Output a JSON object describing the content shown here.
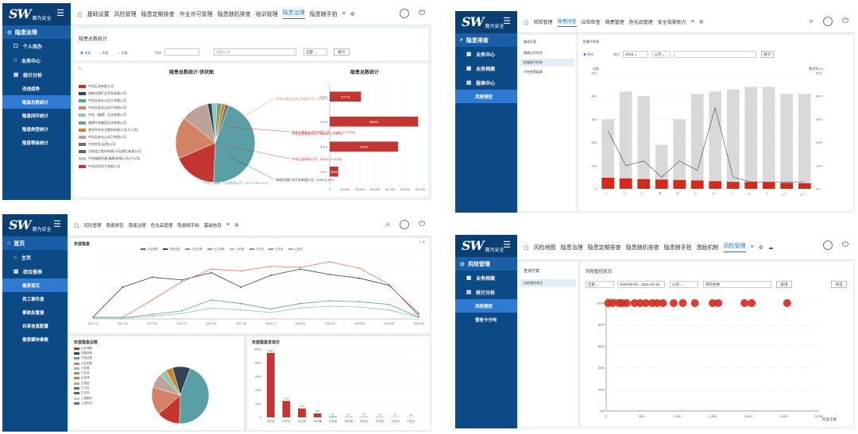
{
  "brand": {
    "logo": "SW",
    "sub": "赛为安全"
  },
  "p1": {
    "sidebar": {
      "section": "隐患治理",
      "items": [
        "个人待办",
        "业务中心",
        "统计分析"
      ],
      "subs": [
        "改进趋势",
        "隐患总数统计",
        "隐患闭环统计",
        "隐患类型统计",
        "隐患等级统计"
      ]
    },
    "nav": [
      "基础设置",
      "风险管理",
      "隐患定期排查",
      "作业许可管理",
      "隐患随机排查",
      "培训管理",
      "隐患治理",
      "隐患随手拍"
    ],
    "page_title": "隐患总数统计",
    "filters": {
      "radio": [
        "年度",
        "季度",
        "月度"
      ],
      "year_label": "年份:",
      "company": "选择公司",
      "all": "全部",
      "btn": "统计"
    },
    "pie_title": "隐患总数统计-饼状图",
    "bar_title": "隐患总数统计",
    "legend": [
      "中化石油有限公司",
      "湖南北部矿业开发有限公司",
      "中化吉林长山化工有限公司",
      "中化吉林长山化工有限公司",
      "中化（福建）石化有限公司",
      "福建中化集团石化有限公司",
      "湖北中化东方肥料有限公司(子公司)",
      "中科吉林长山化工有限公司",
      "中化农业(云南)公司",
      "沈阳化工股份有限公司(湖北)有限公司",
      "中化福建资源(福建)有限公司(子公司)",
      "中化北京化工有限公司"
    ],
    "pie_labels": [
      "中化石油有限公司 : 28834 (17.85%)",
      "中化吉林长山化工有限公司 : 21496 (17.05%)",
      "中化石油有限公司 : 16919 (11.21%)",
      "湖南北部矿业开发有限公司 : 2194 (1.8%)",
      "中化（福建）石化有限公司 : 55173 (45.14%)"
    ],
    "chart_data": {
      "type": "bar",
      "categories": [
        "2020",
        "2019",
        "2018",
        "2017"
      ],
      "values": [
        20778,
        58604,
        45230,
        5686
      ],
      "xlim": [
        0,
        60000
      ],
      "xticks": [
        "0",
        "10,000",
        "20,000",
        "30,000",
        "40,000",
        "50,000",
        "60,000"
      ]
    },
    "pie_data": [
      {
        "value": 45.14,
        "color": "#5a9ea6"
      },
      {
        "value": 17.85,
        "color": "#c23531"
      },
      {
        "value": 17.05,
        "color": "#d48265"
      },
      {
        "value": 11.21,
        "color": "#bda29a"
      },
      {
        "value": 1.8,
        "color": "#2f4554"
      },
      {
        "value": 2.0,
        "color": "#91c7ae"
      },
      {
        "value": 2.0,
        "color": "#749f83"
      },
      {
        "value": 1.5,
        "color": "#ca8622"
      },
      {
        "value": 1.45,
        "color": "#6e7074"
      }
    ]
  },
  "p2": {
    "sidebar": {
      "section": "隐患排查",
      "items": [
        "业务中心",
        "业务档案",
        "报表中心"
      ],
      "subs": [
        "风险预控"
      ]
    },
    "nav": [
      "风险管理",
      "隐患排查",
      "应检检查",
      "隐患管理",
      "危化品管理",
      "安全驾驶助力"
    ],
    "left_title": "查询方案",
    "left_items": [
      "隐患点不符合",
      "检查隐不符合",
      "不符合等级表"
    ],
    "right_title": "检查不符合",
    "filters": {
      "radio": "按年",
      "unit": "单位:",
      "year": "2018",
      "company": "公司",
      "btn": "统计"
    },
    "chart_data": {
      "type": "bar",
      "categories": [
        "一",
        "二",
        "三",
        "四",
        "五",
        "六",
        "七",
        "八",
        "九",
        "十",
        "十一",
        "十二"
      ],
      "series": [
        {
          "values": [
            300,
            420,
            400,
            190,
            300,
            410,
            420,
            430,
            440,
            440,
            410,
            410
          ]
        },
        {
          "values": [
            48,
            45,
            42,
            40,
            38,
            36,
            33,
            30,
            30,
            28,
            26,
            24
          ]
        }
      ],
      "line": [
        25,
        10,
        12,
        5,
        12,
        8,
        35,
        5,
        3,
        3,
        3,
        3
      ],
      "ylim": [
        0,
        500
      ],
      "ylim2": [
        0,
        50
      ]
    }
  },
  "p3": {
    "sidebar": {
      "section": "首页",
      "items": [
        "主页",
        "综合报表"
      ],
      "subs": [
        "报表首页",
        "员工事件度",
        "事故处置报",
        "共享信息配置",
        "报表模块参数"
      ]
    },
    "nav": [
      "风险管理",
      "隐患排查",
      "隐患治理",
      "危化品管理",
      "隐患随手拍",
      "基础信息"
    ],
    "line_title": "年度隐患",
    "pie_title": "年度隐患总数",
    "bar_title": "年度隐患发现次",
    "legend": [
      "已处理数",
      "待整改数",
      "已验证数",
      "已注销数",
      "已处置",
      "已完成",
      "在查清",
      "已退回",
      "已下发",
      "已关闭",
      "上报整改",
      "上报安全"
    ],
    "line_x": [
      "2017-01",
      "2017-02",
      "2017-03",
      "2017-04",
      "2017-05",
      "2017-06",
      "2018-01",
      "2018-02",
      "2018-03",
      "2018-04",
      "2018-05",
      "2018-06"
    ],
    "chart_data": {
      "type": "line",
      "series": [
        {
          "values": [
            100,
            1750,
            2300,
            2150,
            2550,
            1750,
            2400,
            2750,
            2450,
            2250,
            1850,
            280
          ]
        },
        {
          "values": [
            100,
            80,
            1050,
            2050,
            2750,
            2650,
            2900,
            2850,
            3150,
            2800,
            1900,
            150
          ]
        },
        {
          "values": [
            80,
            60,
            250,
            450,
            1050,
            850,
            550,
            850,
            1000,
            950,
            800,
            100
          ]
        },
        {
          "values": [
            60,
            50,
            150,
            300,
            600,
            500,
            350,
            600,
            700,
            650,
            500,
            80
          ]
        }
      ],
      "ylim": [
        0,
        3500
      ]
    },
    "bar_data": {
      "categories": [
        "中化总",
        "中化石",
        "中化吉",
        "中化福",
        "中化北",
        "中化湖",
        "中化云",
        "中化沈",
        "中化天",
        "中化大"
      ],
      "values": [
        9440,
        2410,
        1310,
        570,
        80,
        50,
        50,
        40,
        30,
        20
      ],
      "ymax": 10000
    },
    "pie_data": [
      {
        "value": 45,
        "color": "#5a9ea6"
      },
      {
        "value": 13,
        "color": "#c23531"
      },
      {
        "value": 16,
        "color": "#d48265"
      },
      {
        "value": 8,
        "color": "#bda29a"
      },
      {
        "value": 4,
        "color": "#91c7ae"
      },
      {
        "value": 4,
        "color": "#ca8622"
      },
      {
        "value": 10,
        "color": "#2f4554"
      }
    ]
  },
  "p4": {
    "sidebar": {
      "section": "风险管理",
      "items": [
        "业务档案",
        "统计分析"
      ],
      "subs": [
        "风险预控",
        "查检卡分布"
      ]
    },
    "nav": [
      "风险地图",
      "隐患治理",
      "隐患定期排查",
      "隐患随机排查",
      "隐患随手拍",
      "激励机制",
      "风险管理"
    ],
    "left_title": "查询方案",
    "left_item": "风险管控状况",
    "right_title": "风险管控状况",
    "filters": {
      "all": "全部",
      "date": "2020-09-01 - 2021-04-16",
      "company": "公司",
      "risk": "风险生物",
      "btn": "查询",
      "btn2": "导出"
    },
    "chart_data": {
      "type": "scatter",
      "x": [
        30,
        90,
        180,
        230,
        290,
        400,
        480,
        560,
        650,
        720,
        800,
        950,
        1080,
        1250,
        1500,
        1580,
        1950,
        2050,
        2550
      ],
      "y": [
        100,
        100,
        100,
        100,
        100,
        100,
        100,
        100,
        100,
        100,
        100,
        100,
        100,
        100,
        100,
        100,
        100,
        100,
        100
      ],
      "xlim": [
        0,
        3000
      ],
      "ylim": [
        0,
        100
      ],
      "xlabel": "检查次数",
      "ylabel": "符合率(%)"
    }
  }
}
